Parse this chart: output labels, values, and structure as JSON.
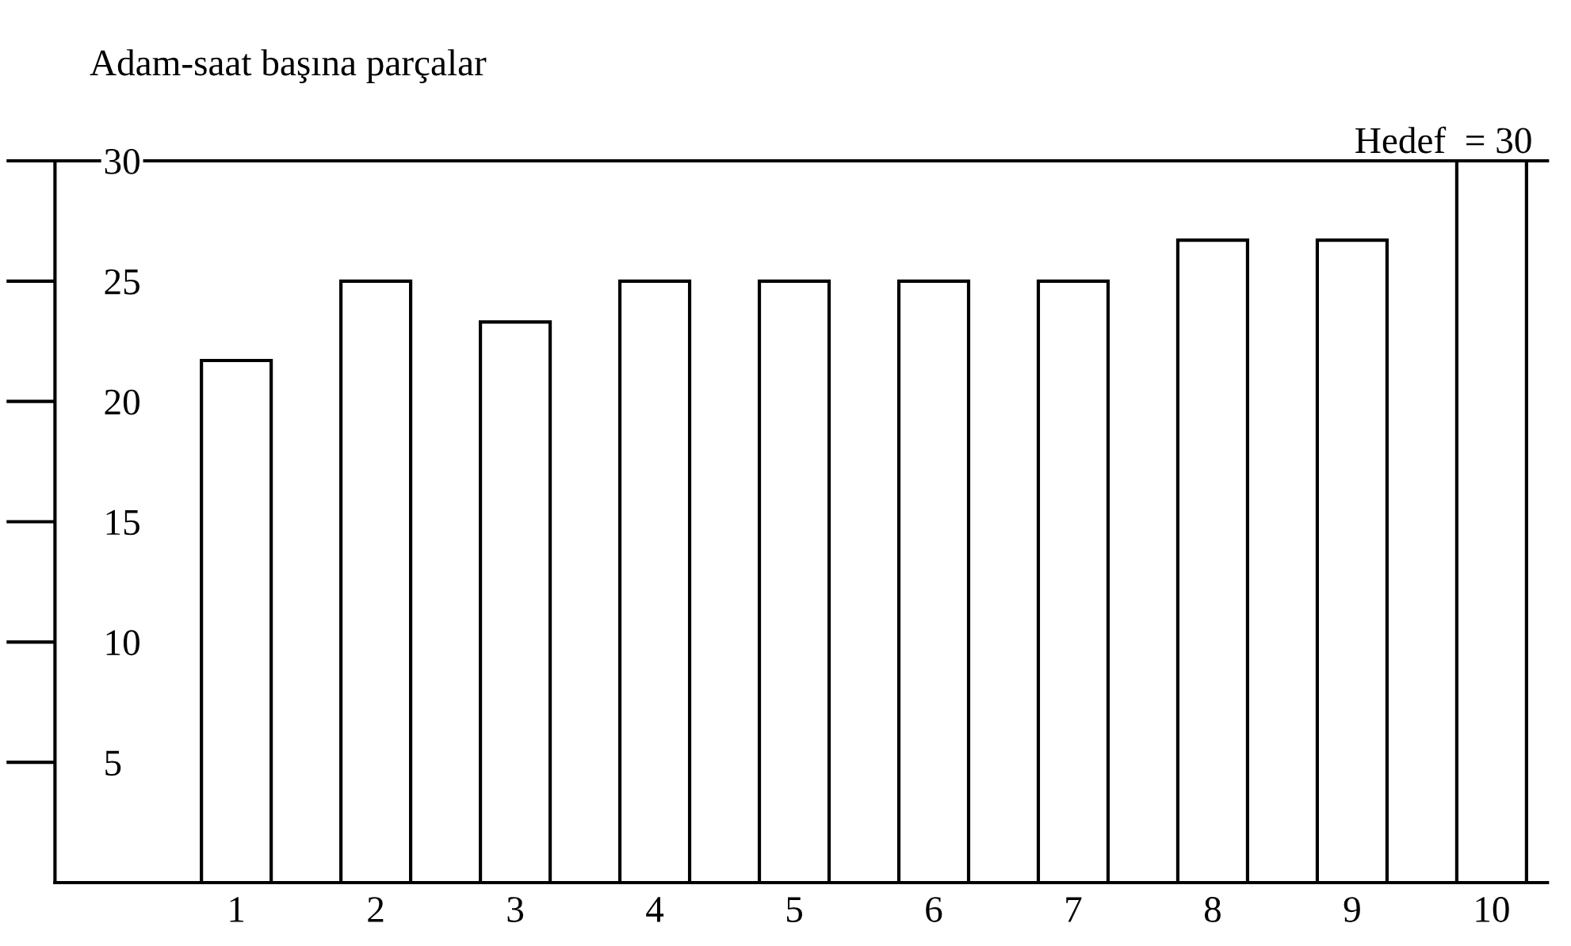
{
  "chart_data": {
    "type": "bar",
    "title": "Adam-saat başına parçalar",
    "categories": [
      "1",
      "2",
      "3",
      "4",
      "5",
      "6",
      "7",
      "8",
      "9",
      "10"
    ],
    "values": [
      21.7,
      25,
      23.3,
      25,
      25,
      25,
      25,
      26.7,
      26.7,
      30
    ],
    "color": "#ffffff",
    "ylim": [
      0,
      30
    ],
    "yticks": [
      5,
      10,
      15,
      20,
      25,
      30
    ],
    "ref_lines": [
      {
        "axis": "y",
        "value": 30,
        "label": "Hedef  = 30",
        "color": "#000000",
        "line_style": "solid"
      }
    ],
    "grid": false,
    "legend": false
  }
}
